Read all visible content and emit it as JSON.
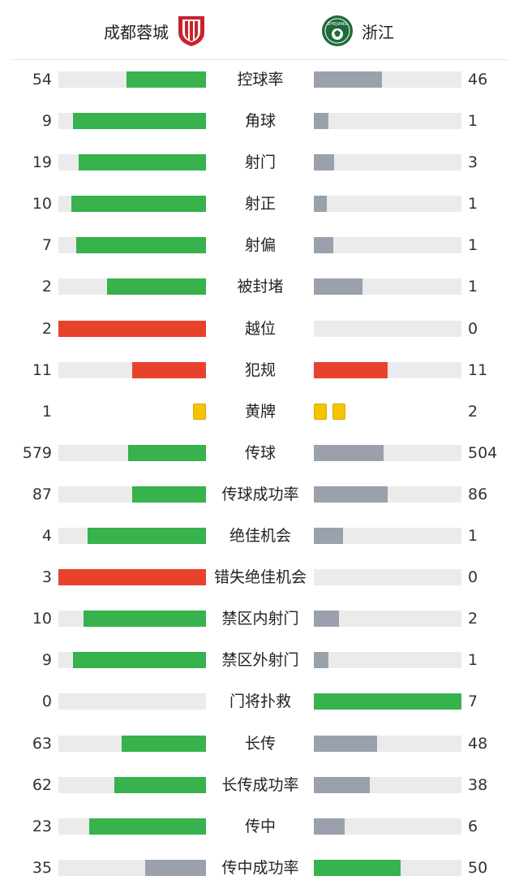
{
  "header": {
    "home_team": "成都蓉城",
    "away_team": "浙江",
    "home_crest_icon": "chengdu-rongcheng-crest-icon",
    "away_crest_icon": "zhejiang-crest-icon",
    "away_crest_text": "ZHEJIANG"
  },
  "colors": {
    "leader": "#37b24d",
    "other": "#9aa1ad",
    "negative": "#e8422d",
    "track": "#ebebeb",
    "yellow_card": "#f5c400"
  },
  "stats": [
    {
      "label": "控球率",
      "home": "54",
      "away": "46",
      "home_frac": 0.54,
      "away_frac": 0.46,
      "home_color": "green",
      "away_color": "gray"
    },
    {
      "label": "角球",
      "home": "9",
      "away": "1",
      "home_frac": 0.9,
      "away_frac": 0.1,
      "home_color": "green",
      "away_color": "gray"
    },
    {
      "label": "射门",
      "home": "19",
      "away": "3",
      "home_frac": 0.86,
      "away_frac": 0.14,
      "home_color": "green",
      "away_color": "gray"
    },
    {
      "label": "射正",
      "home": "10",
      "away": "1",
      "home_frac": 0.91,
      "away_frac": 0.09,
      "home_color": "green",
      "away_color": "gray"
    },
    {
      "label": "射偏",
      "home": "7",
      "away": "1",
      "home_frac": 0.88,
      "away_frac": 0.13,
      "home_color": "green",
      "away_color": "gray"
    },
    {
      "label": "被封堵",
      "home": "2",
      "away": "1",
      "home_frac": 0.67,
      "away_frac": 0.33,
      "home_color": "green",
      "away_color": "gray"
    },
    {
      "label": "越位",
      "home": "2",
      "away": "0",
      "home_frac": 1.0,
      "away_frac": 0.0,
      "home_color": "red",
      "away_color": "gray"
    },
    {
      "label": "犯规",
      "home": "11",
      "away": "11",
      "home_frac": 0.5,
      "away_frac": 0.5,
      "home_color": "red",
      "away_color": "red"
    },
    {
      "label": "黄牌",
      "home": "1",
      "away": "2",
      "home_cards": 1,
      "away_cards": 2
    },
    {
      "label": "传球",
      "home": "579",
      "away": "504",
      "home_frac": 0.53,
      "away_frac": 0.47,
      "home_color": "green",
      "away_color": "gray"
    },
    {
      "label": "传球成功率",
      "home": "87",
      "away": "86",
      "home_frac": 0.5,
      "away_frac": 0.5,
      "home_color": "green",
      "away_color": "gray"
    },
    {
      "label": "绝佳机会",
      "home": "4",
      "away": "1",
      "home_frac": 0.8,
      "away_frac": 0.2,
      "home_color": "green",
      "away_color": "gray"
    },
    {
      "label": "错失绝佳机会",
      "home": "3",
      "away": "0",
      "home_frac": 1.0,
      "away_frac": 0.0,
      "home_color": "red",
      "away_color": "gray"
    },
    {
      "label": "禁区内射门",
      "home": "10",
      "away": "2",
      "home_frac": 0.83,
      "away_frac": 0.17,
      "home_color": "green",
      "away_color": "gray"
    },
    {
      "label": "禁区外射门",
      "home": "9",
      "away": "1",
      "home_frac": 0.9,
      "away_frac": 0.1,
      "home_color": "green",
      "away_color": "gray"
    },
    {
      "label": "门将扑救",
      "home": "0",
      "away": "7",
      "home_frac": 0.0,
      "away_frac": 1.0,
      "home_color": "gray",
      "away_color": "green"
    },
    {
      "label": "长传",
      "home": "63",
      "away": "48",
      "home_frac": 0.57,
      "away_frac": 0.43,
      "home_color": "green",
      "away_color": "gray"
    },
    {
      "label": "长传成功率",
      "home": "62",
      "away": "38",
      "home_frac": 0.62,
      "away_frac": 0.38,
      "home_color": "green",
      "away_color": "gray"
    },
    {
      "label": "传中",
      "home": "23",
      "away": "6",
      "home_frac": 0.79,
      "away_frac": 0.21,
      "home_color": "green",
      "away_color": "gray"
    },
    {
      "label": "传中成功率",
      "home": "35",
      "away": "50",
      "home_frac": 0.41,
      "away_frac": 0.59,
      "home_color": "gray",
      "away_color": "green"
    }
  ]
}
